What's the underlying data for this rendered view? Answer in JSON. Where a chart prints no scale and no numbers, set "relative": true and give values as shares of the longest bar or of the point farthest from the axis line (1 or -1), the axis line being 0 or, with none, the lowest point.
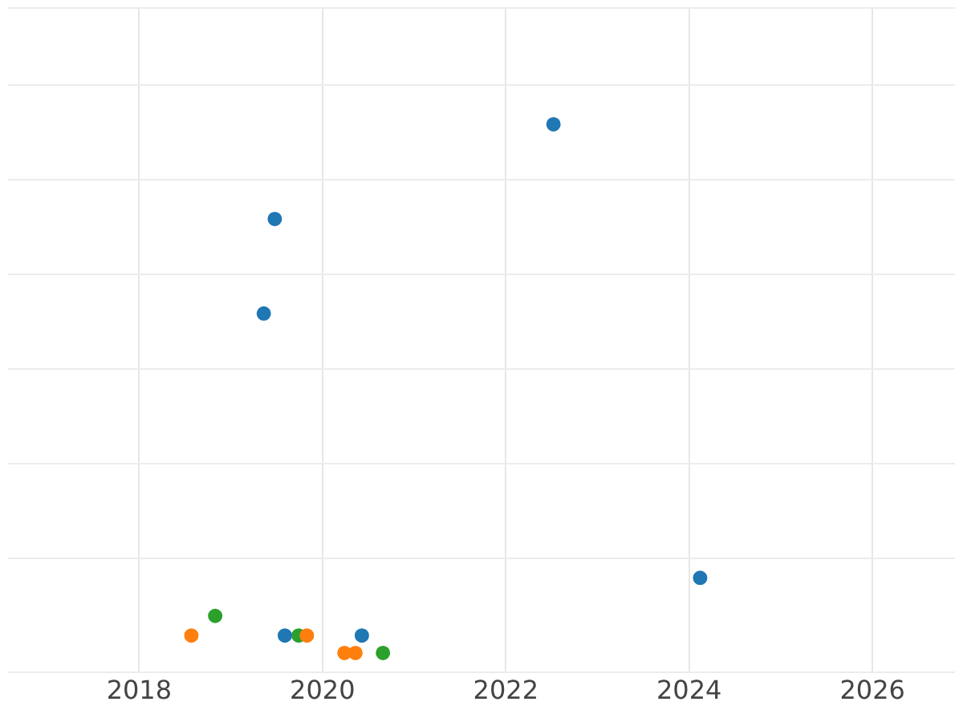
{
  "chart_data": {
    "type": "scatter",
    "relative": true,
    "grid": true,
    "marker": "circle",
    "legend": false,
    "tick_labels": "x",
    "xlim": [
      2016.57,
      2026.9
    ],
    "xticks": [
      2018,
      2020,
      2022,
      2024,
      2026
    ],
    "series": [
      {
        "color": "#1f77b4",
        "x": [
          2022.52,
          2019.48,
          2019.36,
          2024.12,
          2019.59,
          2020.43
        ],
        "values": [
          1,
          0.821,
          0.642,
          0.142,
          0.033,
          0.033
        ]
      },
      {
        "color": "#ff7f0e",
        "x": [
          2018.57,
          2019.83,
          2020.24,
          2020.36
        ],
        "values": [
          0.033,
          0.033,
          0,
          0
        ]
      },
      {
        "color": "#2ca02c",
        "x": [
          2018.83,
          2019.74,
          2020.66
        ],
        "values": [
          0.07,
          0.033,
          0
        ]
      }
    ]
  }
}
